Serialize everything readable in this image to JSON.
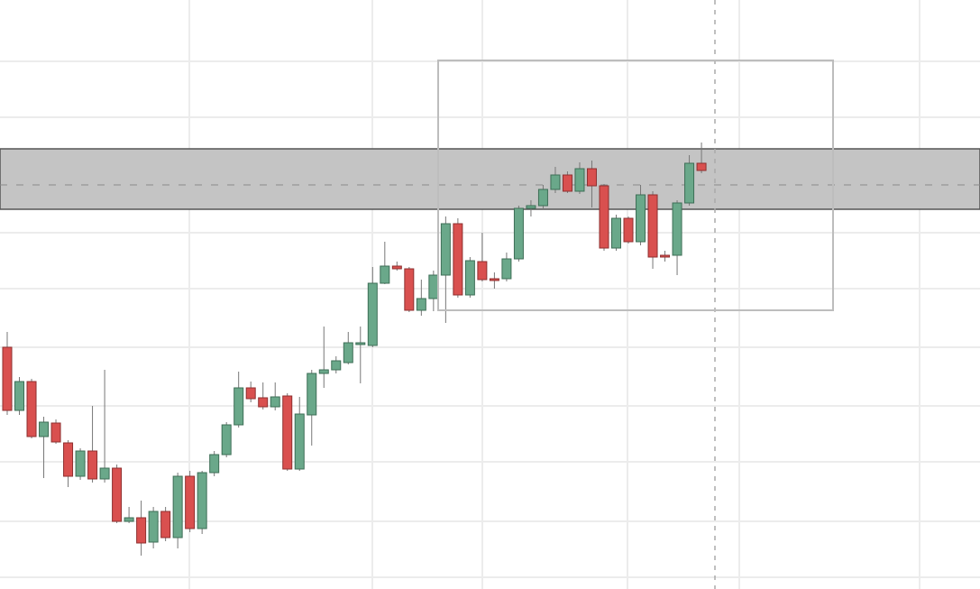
{
  "chart_data": {
    "type": "candlestick",
    "open": [
      268,
      198,
      230,
      169,
      184,
      162,
      125,
      153,
      122,
      134,
      75,
      79,
      52,
      86,
      57,
      125,
      67,
      129,
      149,
      182,
      223,
      212,
      202,
      214,
      133,
      193,
      239,
      243,
      251,
      271,
      270,
      339,
      358,
      355,
      309,
      322,
      348,
      405,
      326,
      363,
      344,
      344,
      366,
      422,
      425,
      443,
      459,
      441,
      466,
      447,
      378,
      411,
      385,
      437,
      370,
      370,
      428,
      472
    ],
    "high": [
      285,
      235,
      233,
      191,
      188,
      165,
      156,
      203,
      243,
      138,
      91,
      98,
      91,
      91,
      129,
      131,
      131,
      153,
      185,
      241,
      230,
      229,
      229,
      217,
      213,
      243,
      291,
      258,
      285,
      291,
      357,
      385,
      363,
      357,
      343,
      353,
      413,
      411,
      368,
      395,
      351,
      373,
      425,
      431,
      448,
      468,
      463,
      473,
      475,
      449,
      415,
      413,
      448,
      441,
      375,
      431,
      481,
      495
    ],
    "low": [
      193,
      193,
      167,
      123,
      161,
      113,
      121,
      118,
      118,
      73,
      73,
      37,
      45,
      53,
      45,
      63,
      61,
      125,
      146,
      179,
      207,
      199,
      198,
      131,
      131,
      159,
      223,
      239,
      249,
      228,
      268,
      338,
      353,
      307,
      303,
      308,
      295,
      323,
      323,
      341,
      333,
      341,
      363,
      413,
      421,
      439,
      439,
      438,
      423,
      375,
      375,
      383,
      381,
      355,
      363,
      348,
      425,
      461
    ],
    "close": [
      198,
      230,
      169,
      185,
      163,
      125,
      153,
      122,
      134,
      75,
      79,
      51,
      86,
      57,
      125,
      67,
      129,
      149,
      182,
      223,
      211,
      202,
      213,
      133,
      194,
      239,
      243,
      253,
      273,
      273,
      339,
      358,
      355,
      309,
      322,
      348,
      405,
      326,
      364,
      343,
      342,
      366,
      422,
      425,
      443,
      459,
      441,
      466,
      447,
      378,
      411,
      385,
      437,
      368,
      368,
      428,
      472,
      464
    ],
    "ylim": [
      0,
      653
    ],
    "up_color": "#6aa88a",
    "down_color": "#d9504f"
  }
}
